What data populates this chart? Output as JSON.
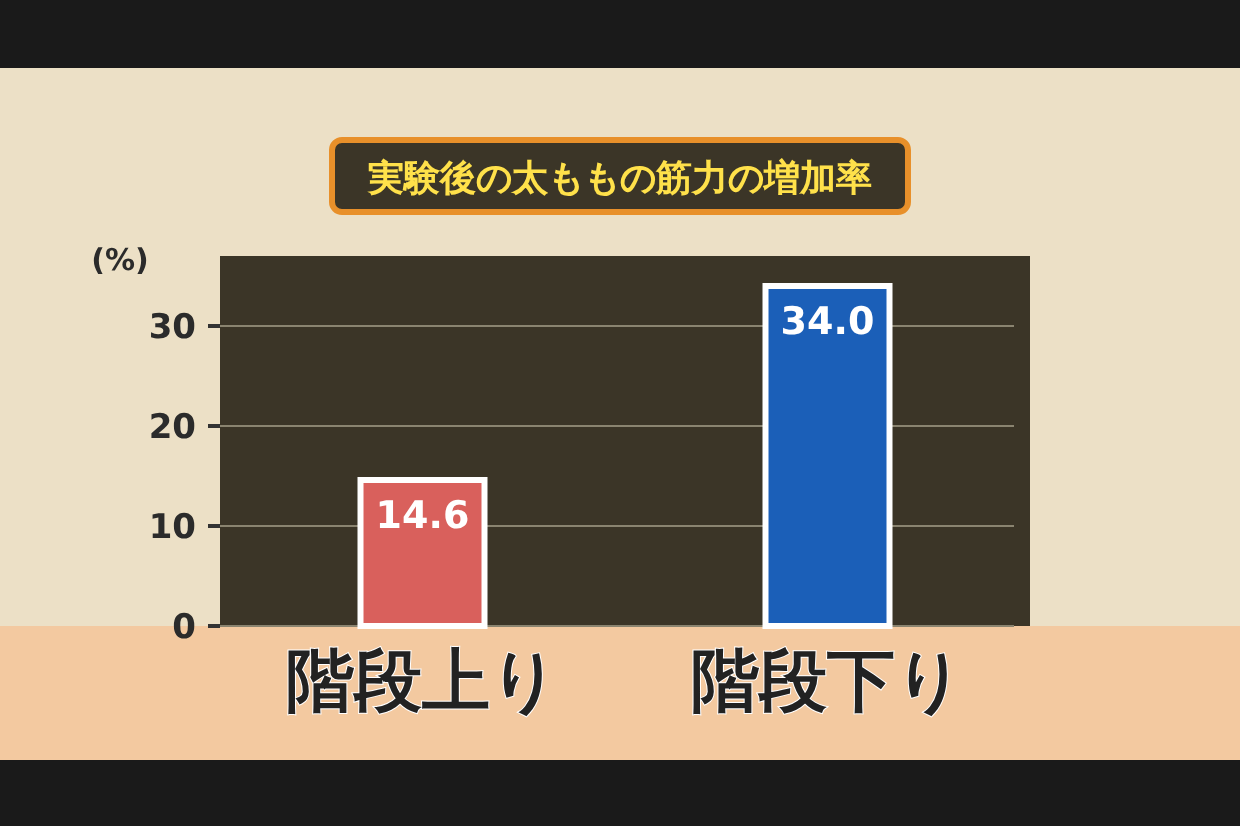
{
  "chart_data": {
    "type": "bar",
    "title": "実験後の太ももの筋力の増加率",
    "ylabel": "(%)",
    "categories": [
      "階段上り",
      "階段下り"
    ],
    "values": [
      14.6,
      34.0
    ],
    "value_labels": [
      "14.6",
      "34.0"
    ],
    "colors": [
      "#d9605c",
      "#1b5fb8"
    ],
    "ylim": [
      0,
      37
    ],
    "yticks": [
      0,
      10,
      20,
      30
    ],
    "grid": "y"
  }
}
